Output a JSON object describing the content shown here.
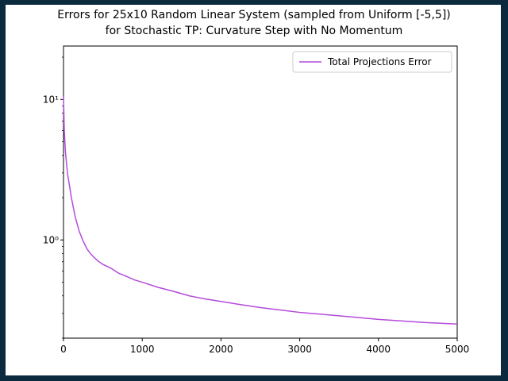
{
  "chart_data": {
    "type": "line",
    "title": "Errors for 25x10 Random Linear System (sampled from Uniform [-5,5])",
    "subtitle": "for Stochastic TP: Curvature Step with No Momentum",
    "xlabel": "",
    "ylabel": "",
    "xlim": [
      0,
      5000
    ],
    "ylim": [
      0.2,
      24
    ],
    "yscale": "log",
    "x_ticks": [
      "0",
      "1000",
      "2000",
      "3000",
      "4000",
      "5000"
    ],
    "y_ticks": [
      "10¹",
      "10⁰"
    ],
    "grid": false,
    "legend": "top-right",
    "series": [
      {
        "name": "Total Projections Error",
        "color": "#b44bdb",
        "x": [
          0,
          10,
          25,
          50,
          75,
          100,
          150,
          200,
          250,
          300,
          350,
          400,
          450,
          500,
          600,
          700,
          800,
          900,
          1000,
          1200,
          1400,
          1600,
          1800,
          2000,
          2200,
          2500,
          2800,
          3000,
          3300,
          3600,
          4000,
          4300,
          4600,
          5000
        ],
        "y": [
          10.5,
          6.0,
          4.2,
          3.0,
          2.45,
          2.0,
          1.45,
          1.15,
          0.98,
          0.86,
          0.79,
          0.74,
          0.7,
          0.67,
          0.63,
          0.58,
          0.55,
          0.52,
          0.5,
          0.46,
          0.43,
          0.4,
          0.38,
          0.365,
          0.35,
          0.33,
          0.315,
          0.305,
          0.295,
          0.285,
          0.272,
          0.265,
          0.258,
          0.252
        ]
      }
    ]
  }
}
